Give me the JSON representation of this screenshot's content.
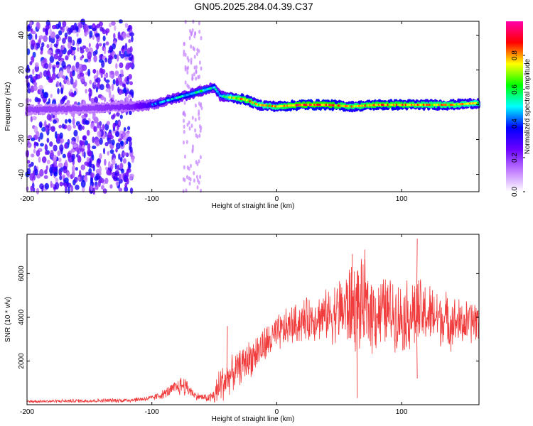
{
  "chart_data": [
    {
      "type": "heatmap",
      "title": "GN05.2025.284.04.39.C37",
      "xlabel": "Height of straight line (km)",
      "ylabel": "Frequency (Hz)",
      "xlim": [
        -200,
        162
      ],
      "ylim": [
        -50,
        48
      ],
      "xticks": [
        -200,
        -100,
        0,
        100
      ],
      "yticks": [
        40,
        20,
        0,
        -20,
        -40
      ],
      "colorbar": {
        "label": "Normalized spectral amplitude",
        "range": [
          0,
          1
        ],
        "ticks": [
          0.0,
          0.2,
          0.4,
          0.6,
          0.8
        ],
        "colors": [
          "#ffffff",
          "#c07bff",
          "#6a00ff",
          "#0000ff",
          "#00ffff",
          "#00ff00",
          "#ffff00",
          "#ff0000",
          "#ff00aa"
        ]
      },
      "ridge": [
        {
          "x": -200,
          "y": -3,
          "a": 0.25
        },
        {
          "x": -150,
          "y": -2,
          "a": 0.25
        },
        {
          "x": -115,
          "y": -1,
          "a": 0.3
        },
        {
          "x": -100,
          "y": 0,
          "a": 0.4
        },
        {
          "x": -90,
          "y": 2,
          "a": 0.45
        },
        {
          "x": -80,
          "y": 4,
          "a": 0.5
        },
        {
          "x": -70,
          "y": 6,
          "a": 0.5
        },
        {
          "x": -60,
          "y": 8,
          "a": 0.55
        },
        {
          "x": -50,
          "y": 10,
          "a": 0.5
        },
        {
          "x": -45,
          "y": 5,
          "a": 0.5
        },
        {
          "x": -35,
          "y": 4,
          "a": 0.7
        },
        {
          "x": -25,
          "y": 3,
          "a": 0.8
        },
        {
          "x": -15,
          "y": 0,
          "a": 0.7
        },
        {
          "x": 0,
          "y": -1,
          "a": 0.75
        },
        {
          "x": 20,
          "y": 0,
          "a": 0.85
        },
        {
          "x": 40,
          "y": 0,
          "a": 0.85
        },
        {
          "x": 60,
          "y": -1,
          "a": 0.75
        },
        {
          "x": 80,
          "y": 0,
          "a": 0.8
        },
        {
          "x": 100,
          "y": 0,
          "a": 0.8
        },
        {
          "x": 120,
          "y": 0,
          "a": 0.75
        },
        {
          "x": 140,
          "y": 0,
          "a": 0.75
        },
        {
          "x": 162,
          "y": 1,
          "a": 0.7
        }
      ],
      "noise_region": {
        "x": [
          -200,
          -115
        ],
        "y": [
          -50,
          48
        ],
        "a": 0.3
      }
    },
    {
      "type": "line",
      "title": "",
      "xlabel": "Height of straight line (km)",
      "ylabel": "SNR (10 * v/v)",
      "xlim": [
        -200,
        162
      ],
      "ylim": [
        0,
        7800
      ],
      "xticks": [
        -200,
        -100,
        0,
        100
      ],
      "yticks": [
        2000,
        4000,
        6000
      ],
      "color": "#f03c3c",
      "series": [
        {
          "name": "SNR",
          "x": [
            -200,
            -150,
            -120,
            -100,
            -90,
            -80,
            -75,
            -70,
            -65,
            -55,
            -50,
            -45,
            -40,
            -30,
            -20,
            -10,
            0,
            10,
            20,
            30,
            40,
            50,
            60,
            70,
            80,
            90,
            100,
            110,
            120,
            130,
            140,
            150,
            162
          ],
          "y": [
            150,
            180,
            200,
            300,
            500,
            800,
            900,
            700,
            400,
            300,
            400,
            900,
            1200,
            1700,
            2200,
            2700,
            3200,
            3600,
            3800,
            4000,
            4100,
            4300,
            4500,
            4400,
            4200,
            4300,
            4000,
            4200,
            4100,
            4000,
            3800,
            3700,
            3900
          ],
          "spread": [
            80,
            100,
            120,
            150,
            250,
            400,
            600,
            350,
            200,
            200,
            500,
            1200,
            900,
            900,
            1000,
            1000,
            1000,
            1000,
            1100,
            1200,
            1300,
            1800,
            2400,
            2400,
            2000,
            1800,
            1800,
            2000,
            1700,
            1500,
            1400,
            1200,
            1200
          ]
        }
      ],
      "peaks": [
        {
          "x": -40,
          "y": 3600
        },
        {
          "x": 60,
          "y": 6900
        },
        {
          "x": 64,
          "y": 300
        },
        {
          "x": 70,
          "y": 7100
        },
        {
          "x": 112,
          "y": 7600
        },
        {
          "x": 112,
          "y": 1200
        }
      ]
    }
  ]
}
